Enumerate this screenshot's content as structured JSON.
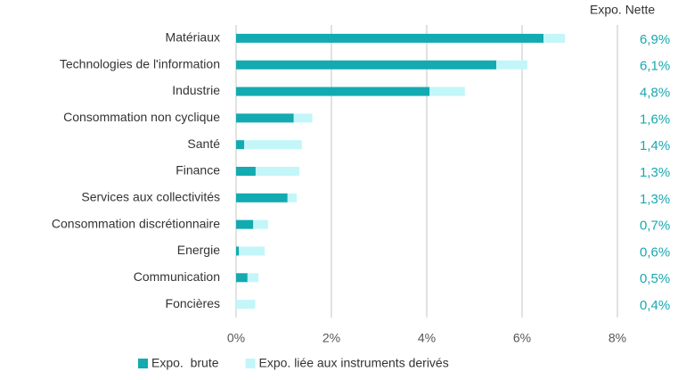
{
  "chart_data": {
    "type": "stacked-bar-horizontal",
    "categories": [
      "Matériaux",
      "Technologies de l'information",
      "Industrie",
      "Consommation non cyclique",
      "Santé",
      "Finance",
      "Services aux collectivités",
      "Consommation discrétionnaire",
      "Energie",
      "Communication",
      "Foncières"
    ],
    "series": [
      {
        "name": "Expo.  brute",
        "color": "#13aab1",
        "values": [
          6.45,
          5.46,
          4.06,
          1.21,
          0.17,
          0.41,
          1.08,
          0.36,
          0.06,
          0.24,
          0
        ]
      },
      {
        "name": "Expo. liée aux instruments derivés",
        "color": "#c3f6f9",
        "values": [
          0.45,
          0.65,
          0.74,
          0.39,
          1.21,
          0.92,
          0.19,
          0.31,
          0.54,
          0.23,
          0.4
        ]
      }
    ],
    "net_exposure": {
      "name": "Expo. Nette",
      "color": "#17a9b0",
      "values": [
        6.9,
        6.1,
        4.8,
        1.6,
        1.4,
        1.3,
        1.3,
        0.7,
        0.6,
        0.5,
        0.4
      ],
      "value_labels": [
        "6,9%",
        "6,1%",
        "4,8%",
        "1,6%",
        "1,4%",
        "1,3%",
        "1,3%",
        "0,7%",
        "0,6%",
        "0,5%",
        "0,4%"
      ]
    },
    "xlim": [
      0,
      8
    ],
    "xticks": [
      {
        "value": 0,
        "label": "0%"
      },
      {
        "value": 2,
        "label": "2%"
      },
      {
        "value": 4,
        "label": "4%"
      },
      {
        "value": 6,
        "label": "6%"
      },
      {
        "value": 8,
        "label": "8%"
      }
    ],
    "grid": true,
    "legend": "bottom"
  }
}
